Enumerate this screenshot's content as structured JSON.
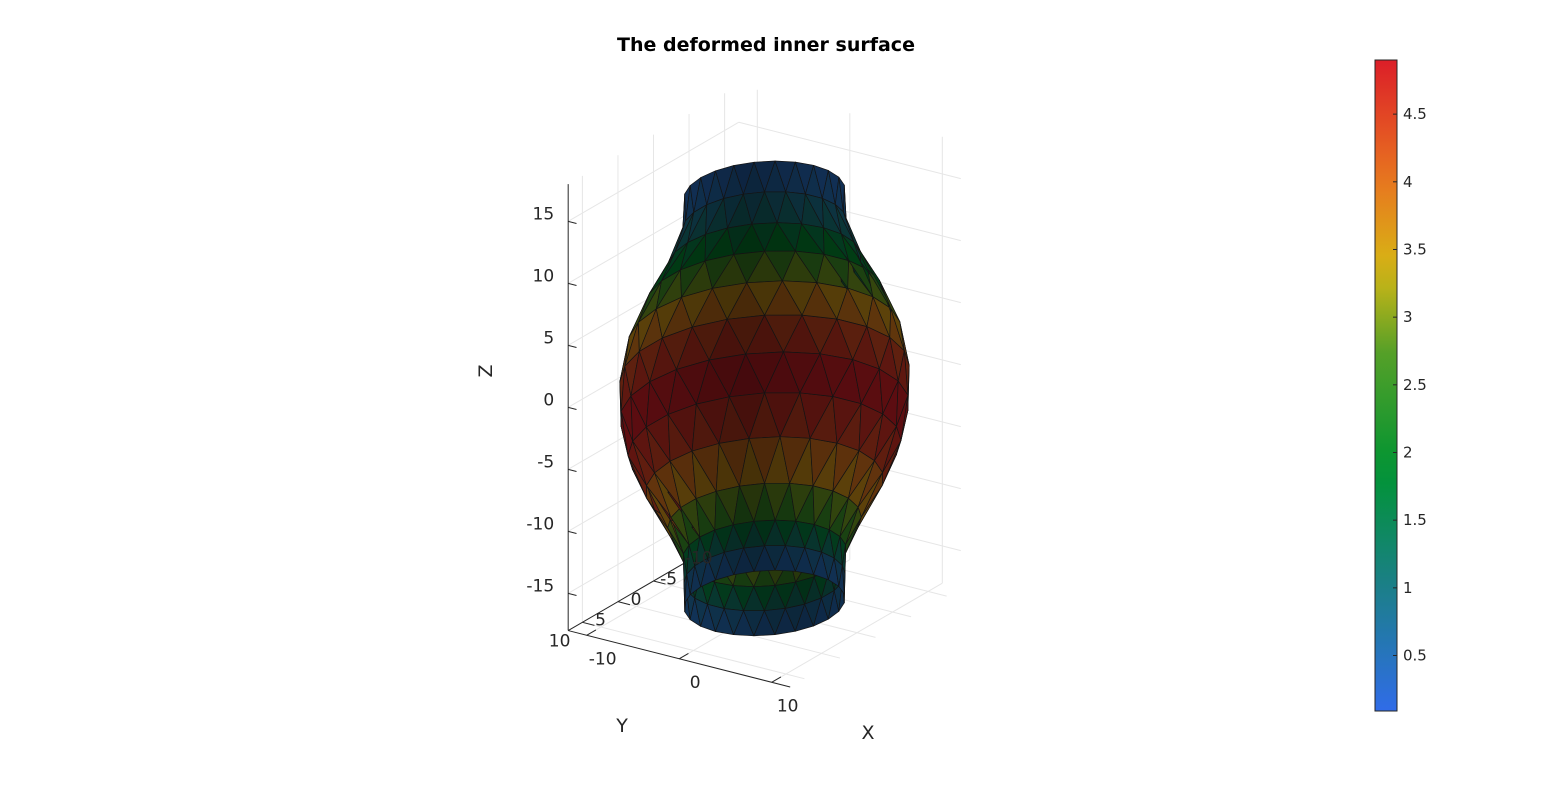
{
  "chart_data": {
    "type": "surface3d",
    "title": "The deformed inner surface",
    "xlabel": "X",
    "ylabel": "Y",
    "zlabel": "Z",
    "x_ticks": [
      "-10",
      "0",
      "10"
    ],
    "y_ticks": [
      "10",
      "5",
      "0",
      "-5",
      "-10"
    ],
    "z_ticks": [
      "15",
      "10",
      "5",
      "0",
      "-5",
      "-10",
      "-15"
    ],
    "xlim": [
      -12,
      12
    ],
    "ylim": [
      -12,
      12
    ],
    "zlim": [
      -18,
      18
    ],
    "grid": true,
    "colormap": "blue-green-yellow-red",
    "colorbar": {
      "ticks": [
        "0.5",
        "1",
        "1.5",
        "2",
        "2.5",
        "3",
        "3.5",
        "4",
        "4.5"
      ],
      "range": [
        0.09,
        4.9
      ],
      "placement": "right"
    },
    "surface": {
      "shape": "vase-like tube, wider in the middle, lit triangulated mesh",
      "rings_z": [
        15.5,
        13,
        10,
        7,
        4,
        1,
        -2,
        -5,
        -8,
        -11,
        -13.5,
        -15.5,
        -17.5
      ],
      "rings_radius": [
        6.9,
        7.0,
        8.3,
        10.2,
        11.7,
        12.4,
        12.4,
        11.7,
        10.2,
        8.3,
        7.0,
        6.9,
        6.9
      ],
      "rings_value": [
        0.25,
        0.6,
        1.3,
        2.2,
        3.3,
        4.2,
        4.85,
        4.9,
        4.3,
        3.3,
        2.1,
        0.8,
        0.25
      ]
    }
  }
}
